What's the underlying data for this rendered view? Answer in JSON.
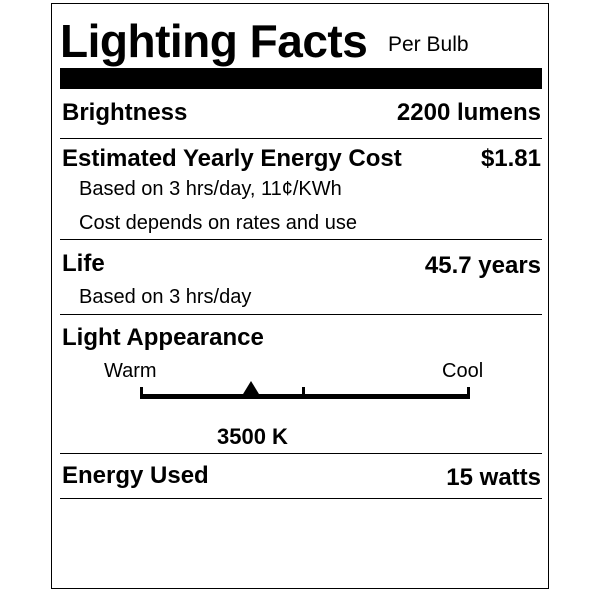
{
  "header": {
    "title": "Lighting Facts",
    "subtitle": "Per Bulb"
  },
  "brightness": {
    "label": "Brightness",
    "value": "2200 lumens"
  },
  "energy_cost": {
    "label": "Estimated Yearly Energy Cost",
    "value": "$1.81",
    "note1": "Based on 3 hrs/day, 11¢/KWh",
    "note2": "Cost depends on rates and use"
  },
  "life": {
    "label": "Life",
    "value": "45.7 years",
    "note": "Based on 3 hrs/day"
  },
  "light_appearance": {
    "label": "Light Appearance",
    "warm_label": "Warm",
    "cool_label": "Cool",
    "value": "3500 K",
    "marker_fraction": 0.335
  },
  "energy_used": {
    "label": "Energy Used",
    "value": "15 watts"
  }
}
